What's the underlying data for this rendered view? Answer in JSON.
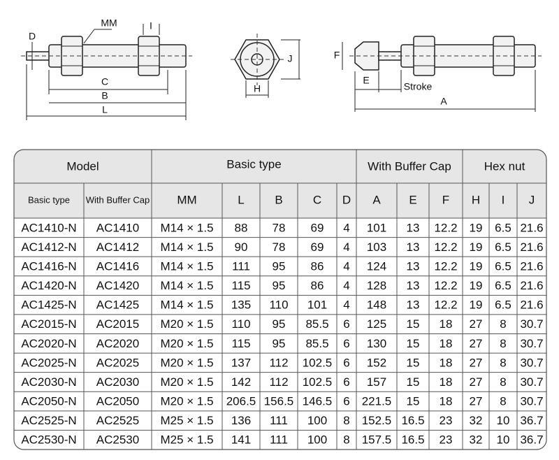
{
  "diagram": {
    "labels": {
      "d": "D",
      "mm": "MM",
      "i": "I",
      "c": "C",
      "b": "B",
      "l": "L",
      "h": "H",
      "j": "J",
      "f": "F",
      "e": "E",
      "stroke": "Stroke",
      "a": "A"
    }
  },
  "table": {
    "group_headers": [
      "Model",
      "Basic type",
      "With Buffer Cap",
      "Hex nut"
    ],
    "columns": [
      "Basic type",
      "With Buffer Cap",
      "MM",
      "L",
      "B",
      "C",
      "D",
      "A",
      "E",
      "F",
      "H",
      "I",
      "J"
    ],
    "rows": [
      [
        "AC1410-N",
        "AC1410",
        "M14 × 1.5",
        "88",
        "78",
        "69",
        "4",
        "101",
        "13",
        "12.2",
        "19",
        "6.5",
        "21.6"
      ],
      [
        "AC1412-N",
        "AC1412",
        "M14 × 1.5",
        "90",
        "78",
        "69",
        "4",
        "103",
        "13",
        "12.2",
        "19",
        "6.5",
        "21.6"
      ],
      [
        "AC1416-N",
        "AC1416",
        "M14 × 1.5",
        "111",
        "95",
        "86",
        "4",
        "124",
        "13",
        "12.2",
        "19",
        "6.5",
        "21.6"
      ],
      [
        "AC1420-N",
        "AC1420",
        "M14 × 1.5",
        "115",
        "95",
        "86",
        "4",
        "128",
        "13",
        "12.2",
        "19",
        "6.5",
        "21.6"
      ],
      [
        "AC1425-N",
        "AC1425",
        "M14 × 1.5",
        "135",
        "110",
        "101",
        "4",
        "148",
        "13",
        "12.2",
        "19",
        "6.5",
        "21.6"
      ],
      [
        "AC2015-N",
        "AC2015",
        "M20 × 1.5",
        "110",
        "95",
        "85.5",
        "6",
        "125",
        "15",
        "18",
        "27",
        "8",
        "30.7"
      ],
      [
        "AC2020-N",
        "AC2020",
        "M20 × 1.5",
        "115",
        "95",
        "85.5",
        "6",
        "130",
        "15",
        "18",
        "27",
        "8",
        "30.7"
      ],
      [
        "AC2025-N",
        "AC2025",
        "M20 × 1.5",
        "137",
        "112",
        "102.5",
        "6",
        "152",
        "15",
        "18",
        "27",
        "8",
        "30.7"
      ],
      [
        "AC2030-N",
        "AC2030",
        "M20 × 1.5",
        "142",
        "112",
        "102.5",
        "6",
        "157",
        "15",
        "18",
        "27",
        "8",
        "30.7"
      ],
      [
        "AC2050-N",
        "AC2050",
        "M20 × 1.5",
        "206.5",
        "156.5",
        "146.5",
        "6",
        "221.5",
        "15",
        "18",
        "27",
        "8",
        "30.7"
      ],
      [
        "AC2525-N",
        "AC2525",
        "M25 × 1.5",
        "136",
        "111",
        "100",
        "8",
        "152.5",
        "16.5",
        "23",
        "32",
        "10",
        "36.7"
      ],
      [
        "AC2530-N",
        "AC2530",
        "M25 × 1.5",
        "141",
        "111",
        "100",
        "8",
        "157.5",
        "16.5",
        "23",
        "32",
        "10",
        "36.7"
      ]
    ]
  }
}
